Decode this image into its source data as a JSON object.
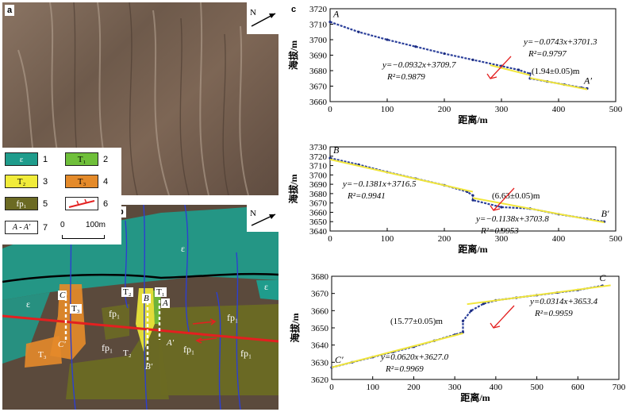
{
  "panel_a": {
    "label": "a"
  },
  "panel_b": {
    "label": "b"
  },
  "panel_c": {
    "label": "c"
  },
  "north_symbol": "N",
  "legend": [
    {
      "code": "ε",
      "num": "1",
      "color": "#1f9c8c"
    },
    {
      "code": "T₁",
      "num": "2",
      "color": "#6fbf3a"
    },
    {
      "code": "T₂",
      "num": "3",
      "color": "#f1ec3a"
    },
    {
      "code": "T₃",
      "num": "4",
      "color": "#e48a2a"
    },
    {
      "code": "fp₁",
      "num": "5",
      "color": "#6b6a23"
    },
    {
      "code": "fault",
      "num": "6",
      "color": "#e32020"
    },
    {
      "code": "A - A′",
      "num": "7"
    }
  ],
  "scale_bar": {
    "left": "0",
    "right": "100m"
  },
  "map_labels": {
    "eps": "ε",
    "fp1": "fp₁",
    "T3": "T₃",
    "T2": "T₂",
    "T1": "T₁",
    "A": "A",
    "Ap": "A′",
    "B": "B",
    "Bp": "B′",
    "C": "C",
    "Cp": "C′"
  },
  "chart_data": [
    {
      "type": "scatter",
      "profile": "A-A′",
      "xlabel": "距离/m",
      "ylabel": "海拔/m",
      "xlim": [
        0,
        500
      ],
      "ylim": [
        3660,
        3720
      ],
      "xticks": [
        0,
        100,
        200,
        300,
        400,
        500
      ],
      "yticks": [
        3660,
        3670,
        3680,
        3690,
        3700,
        3710,
        3720
      ],
      "start_label": "A",
      "end_label": "A′",
      "points_upper": [
        [
          0,
          3711.5
        ],
        [
          50,
          3705
        ],
        [
          100,
          3700
        ],
        [
          150,
          3695.5
        ],
        [
          200,
          3691
        ],
        [
          250,
          3687
        ],
        [
          300,
          3683
        ],
        [
          330,
          3680.5
        ],
        [
          350,
          3678
        ]
      ],
      "points_lower": [
        [
          350,
          3675
        ],
        [
          380,
          3673
        ],
        [
          410,
          3671
        ],
        [
          440,
          3669
        ],
        [
          450,
          3668.5
        ]
      ],
      "fit_upper": {
        "equation": "y=−0.0932x+3709.7",
        "r2": "R²=0.9879",
        "slope": -0.0932,
        "intercept": 3709.7,
        "range": [
          280,
          350
        ]
      },
      "fit_lower": {
        "equation": "y=−0.0743x+3701.3",
        "r2": "R²=0.9797",
        "slope": -0.0743,
        "intercept": 3701.3,
        "range": [
          350,
          450
        ]
      },
      "offset_label": "(1.94±0.05)m"
    },
    {
      "type": "scatter",
      "profile": "B-B′",
      "xlabel": "距离/m",
      "ylabel": "海拔/m",
      "xlim": [
        0,
        500
      ],
      "ylim": [
        3640,
        3730
      ],
      "xticks": [
        0,
        100,
        200,
        300,
        400,
        500
      ],
      "yticks": [
        3640,
        3650,
        3660,
        3670,
        3680,
        3690,
        3700,
        3710,
        3720,
        3730
      ],
      "start_label": "B",
      "end_label": "B′",
      "points_upper": [
        [
          0,
          3718
        ],
        [
          50,
          3711
        ],
        [
          100,
          3703
        ],
        [
          150,
          3696
        ],
        [
          200,
          3689
        ],
        [
          240,
          3682
        ],
        [
          250,
          3678
        ]
      ],
      "points_lower": [
        [
          250,
          3673
        ],
        [
          300,
          3665.5
        ],
        [
          350,
          3664
        ],
        [
          400,
          3658
        ],
        [
          450,
          3653
        ],
        [
          480,
          3650
        ]
      ],
      "fit_upper": {
        "equation": "y=−0.1381x+3716.5",
        "r2": "R²=0.9941",
        "slope": -0.1381,
        "intercept": 3716.5,
        "range": [
          0,
          250
        ]
      },
      "fit_lower": {
        "equation": "y=−0.1138x+3703.8",
        "r2": "R²=0.9953",
        "slope": -0.1138,
        "intercept": 3703.8,
        "range": [
          250,
          480
        ]
      },
      "offset_label": "(6.63±0.05)m"
    },
    {
      "type": "scatter",
      "profile": "C-C′",
      "xlabel": "距离/m",
      "ylabel": "海拔/m",
      "xlim": [
        0,
        700
      ],
      "ylim": [
        3620,
        3680
      ],
      "xticks": [
        0,
        100,
        200,
        300,
        400,
        500,
        600,
        700
      ],
      "yticks": [
        3620,
        3630,
        3640,
        3650,
        3660,
        3670,
        3680
      ],
      "start_label": "C′",
      "end_label": "C",
      "points_upper": [
        [
          320,
          3654
        ],
        [
          340,
          3660
        ],
        [
          370,
          3664
        ],
        [
          400,
          3666
        ],
        [
          450,
          3667.5
        ],
        [
          500,
          3669
        ],
        [
          550,
          3670.5
        ],
        [
          600,
          3672
        ],
        [
          660,
          3674.5
        ]
      ],
      "points_lower": [
        [
          0,
          3627
        ],
        [
          50,
          3630
        ],
        [
          100,
          3633
        ],
        [
          150,
          3636
        ],
        [
          200,
          3639
        ],
        [
          250,
          3642.5
        ],
        [
          300,
          3646
        ],
        [
          320,
          3647.5
        ]
      ],
      "fit_upper": {
        "equation": "y=0.0314x+3653.4",
        "r2": "R²=0.9959",
        "slope": 0.0314,
        "intercept": 3653.4,
        "range": [
          330,
          680
        ]
      },
      "fit_lower": {
        "equation": "y=0.0620x+3627.0",
        "r2": "R²=0.9969",
        "slope": 0.062,
        "intercept": 3627.0,
        "range": [
          0,
          320
        ]
      },
      "offset_label": "(15.77±0.05)m"
    }
  ]
}
